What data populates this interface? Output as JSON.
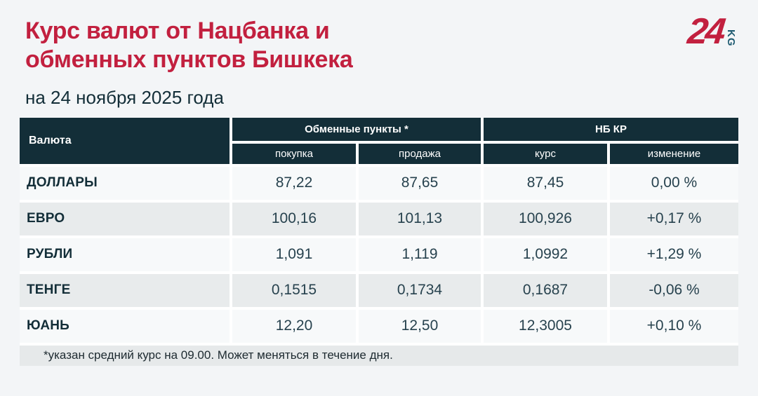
{
  "header": {
    "title_line1": "Курс валют от Нацбанка и",
    "title_line2": "обменных пунктов Бишкека",
    "subtitle": "на 24 ноября 2025 года",
    "logo_text": "24",
    "logo_suffix": "KG"
  },
  "table": {
    "currency_col_header": "Валюта",
    "groups": [
      {
        "label": "Обменные пункты *",
        "subcols": [
          "покупка",
          "продажа"
        ]
      },
      {
        "label": "НБ КР",
        "subcols": [
          "курс",
          "изменение"
        ]
      }
    ],
    "rows": [
      {
        "currency": "ДОЛЛАРЫ",
        "buy": "87,22",
        "sell": "87,65",
        "rate": "87,45",
        "change": "0,00 %"
      },
      {
        "currency": "ЕВРО",
        "buy": "100,16",
        "sell": "101,13",
        "rate": "100,926",
        "change": "+0,17 %"
      },
      {
        "currency": "РУБЛИ",
        "buy": "1,091",
        "sell": "1,119",
        "rate": "1,0992",
        "change": "+1,29 %"
      },
      {
        "currency": "ТЕНГЕ",
        "buy": "0,1515",
        "sell": "0,1734",
        "rate": "0,1687",
        "change": "-0,06 %"
      },
      {
        "currency": "ЮАНЬ",
        "buy": "12,20",
        "sell": "12,50",
        "rate": "12,3005",
        "change": "+0,10 %"
      }
    ],
    "footnote": "*указан средний курс на 09.00. Может меняться в течение дня."
  },
  "colors": {
    "accent_red": "#c2203f",
    "header_dark": "#132e38",
    "row_light": "#f7f9fa",
    "row_gray": "#e8ebec",
    "logo_teal": "#1d5a70",
    "page_bg": "#f3f5f7"
  },
  "chart_data": {
    "type": "table",
    "title": "Курс валют от Нацбанка и обменных пунктов Бишкека",
    "subtitle": "на 24 ноября 2025 года",
    "column_groups": [
      "Валюта",
      "Обменные пункты *",
      "НБ КР"
    ],
    "columns": [
      "Валюта",
      "покупка",
      "продажа",
      "курс",
      "изменение"
    ],
    "rows": [
      [
        "ДОЛЛАРЫ",
        "87,22",
        "87,65",
        "87,45",
        "0,00 %"
      ],
      [
        "ЕВРО",
        "100,16",
        "101,13",
        "100,926",
        "+0,17 %"
      ],
      [
        "РУБЛИ",
        "1,091",
        "1,119",
        "1,0992",
        "+1,29 %"
      ],
      [
        "ТЕНГЕ",
        "0,1515",
        "0,1734",
        "0,1687",
        "-0,06 %"
      ],
      [
        "ЮАНЬ",
        "12,20",
        "12,50",
        "12,3005",
        "+0,10 %"
      ]
    ],
    "footnote": "*указан средний курс на 09.00. Может меняться в течение дня."
  }
}
